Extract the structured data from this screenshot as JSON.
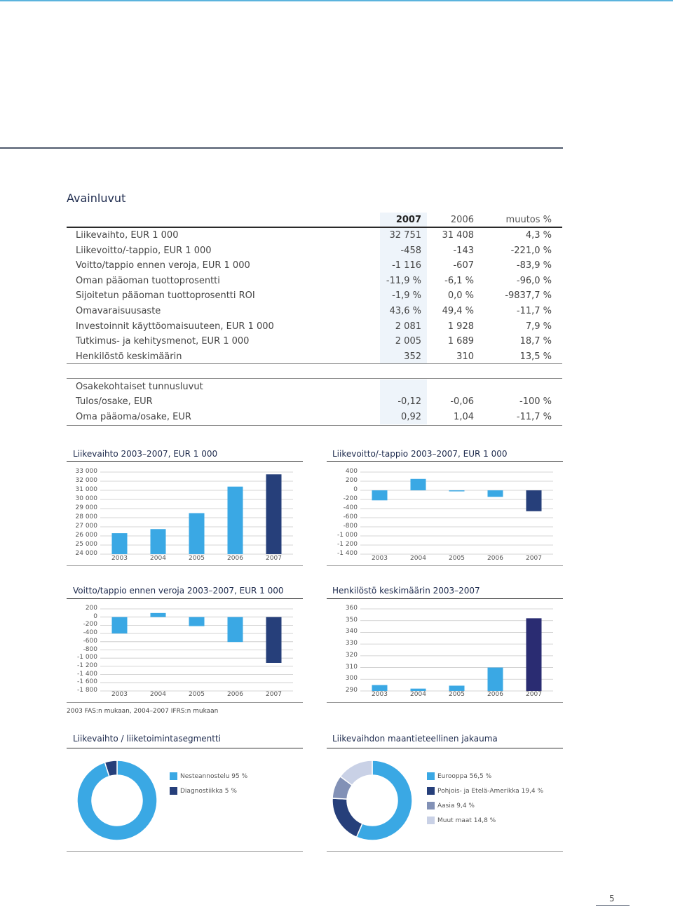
{
  "page_title": "Avainluvut",
  "key_table": {
    "headers": [
      "2007",
      "2006",
      "muutos %"
    ],
    "rows": [
      {
        "label": "Liikevaihto, EUR 1 000",
        "v2007": "32 751",
        "v2006": "31 408",
        "change": "4,3 %"
      },
      {
        "label": "Liikevoitto/-tappio, EUR 1 000",
        "v2007": "-458",
        "v2006": "-143",
        "change": "-221,0 %"
      },
      {
        "label": "Voitto/tappio ennen veroja, EUR 1 000",
        "v2007": "-1 116",
        "v2006": "-607",
        "change": "-83,9 %"
      },
      {
        "label": "Oman pääoman tuottoprosentti",
        "v2007": "-11,9 %",
        "v2006": "-6,1 %",
        "change": "-96,0 %"
      },
      {
        "label": "Sijoitetun pääoman tuottoprosentti ROI",
        "v2007": "-1,9 %",
        "v2006": "0,0 %",
        "change": "-9837,7 %"
      },
      {
        "label": "Omavaraisuusaste",
        "v2007": "43,6 %",
        "v2006": "49,4 %",
        "change": "-11,7 %"
      },
      {
        "label": "Investoinnit käyttöomaisuuteen, EUR 1 000",
        "v2007": "2 081",
        "v2006": "1 928",
        "change": "7,9 %"
      },
      {
        "label": "Tutkimus- ja kehitysmenot, EUR 1 000",
        "v2007": "2 005",
        "v2006": "1 689",
        "change": "18,7 %"
      },
      {
        "label": "Henkilöstö keskimäärin",
        "v2007": "352",
        "v2006": "310",
        "change": "13,5 %"
      }
    ],
    "section2_title": "Osakekohtaiset tunnusluvut",
    "rows2": [
      {
        "label": "Tulos/osake, EUR",
        "v2007": "-0,12",
        "v2006": "-0,06",
        "change": "-100 %"
      },
      {
        "label": "Oma pääoma/osake, EUR",
        "v2007": "0,92",
        "v2006": "1,04",
        "change": "-11,7 %"
      }
    ]
  },
  "colors": {
    "light": "#3aa8e4",
    "dark": "#263f7a",
    "darkpurple": "#2a2c72",
    "grey": "#8291b6",
    "lightgrey": "#c9d1e6"
  },
  "chart_data": [
    {
      "type": "bar",
      "title": "Liikevaihto 2003–2007, EUR 1 000",
      "categories": [
        "2003",
        "2004",
        "2005",
        "2006",
        "2007"
      ],
      "values": [
        26300,
        26750,
        28500,
        31408,
        32751
      ],
      "ylim": [
        24000,
        33000
      ],
      "yticks": [
        "33 000",
        "32 000",
        "31 000",
        "30 000",
        "29 000",
        "28 000",
        "27 000",
        "26 000",
        "25 000",
        "24 000"
      ]
    },
    {
      "type": "bar",
      "title": "Liikevoitto/-tappio 2003–2007, EUR 1 000",
      "categories": [
        "2003",
        "2004",
        "2005",
        "2006",
        "2007"
      ],
      "values": [
        -220,
        250,
        -20,
        -143,
        -458
      ],
      "ylim": [
        -1400,
        400
      ],
      "yticks": [
        "400",
        "200",
        "0",
        "-200",
        "-400",
        "-600",
        "-800",
        "-1 000",
        "-1 200",
        "-1 400"
      ]
    },
    {
      "type": "bar",
      "title": "Voitto/tappio ennen veroja 2003–2007, EUR 1 000",
      "categories": [
        "2003",
        "2004",
        "2005",
        "2006",
        "2007"
      ],
      "values": [
        -400,
        100,
        -220,
        -607,
        -1116
      ],
      "ylim": [
        -1800,
        200
      ],
      "yticks": [
        "200",
        "0",
        "-200",
        "-400",
        "-600",
        "-800",
        "-1 000",
        "-1 200",
        "-1 400",
        "-1 600",
        "-1 800"
      ]
    },
    {
      "type": "bar",
      "title": "Henkilöstö keskimäärin 2003–2007",
      "categories": [
        "2003",
        "2004",
        "2005",
        "2006",
        "2007"
      ],
      "values": [
        295,
        292,
        294.5,
        310,
        352
      ],
      "ylim": [
        290,
        360
      ],
      "yticks": [
        "360",
        "350",
        "340",
        "330",
        "320",
        "310",
        "300",
        "290"
      ]
    },
    {
      "type": "pie",
      "title": "Liikevaihto / liiketoimintasegmentti",
      "labels": [
        "Nesteannostelu 95 %",
        "Diagnostiikka 5 %"
      ],
      "values": [
        95,
        5
      ]
    },
    {
      "type": "pie",
      "title": "Liikevaihdon maantieteellinen jakauma",
      "labels": [
        "Eurooppa 56,5 %",
        "Pohjois- ja Etelä-Amerikka 19,4 %",
        "Aasia 9,4 %",
        "Muut maat 14,8 %"
      ],
      "values": [
        56.5,
        19.4,
        9.4,
        14.8
      ]
    }
  ],
  "footnote": "2003 FAS:n mukaan, 2004–2007 IFRS:n mukaan",
  "page_number": "5"
}
